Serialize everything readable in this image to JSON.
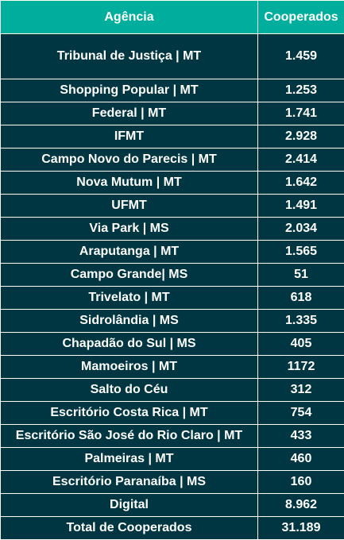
{
  "colors": {
    "header_bg": "#00ae9d",
    "row_bg": "#003641",
    "text": "#ffffff",
    "border": "#ffffff"
  },
  "table": {
    "headers": [
      "Agência",
      "Cooperados"
    ],
    "rows": [
      [
        "Tribunal de Justiça | MT",
        "1.459"
      ],
      [
        "Shopping Popular | MT",
        "1.253"
      ],
      [
        "Federal | MT",
        "1.741"
      ],
      [
        "IFMT",
        "2.928"
      ],
      [
        "Campo Novo do Parecis | MT",
        "2.414"
      ],
      [
        "Nova Mutum | MT",
        "1.642"
      ],
      [
        "UFMT",
        "1.491"
      ],
      [
        "Via Park | MS",
        "2.034"
      ],
      [
        "Araputanga | MT",
        "1.565"
      ],
      [
        "Campo Grande| MS",
        "51"
      ],
      [
        "Trivelato | MT",
        "618"
      ],
      [
        "Sidrolândia | MS",
        "1.335"
      ],
      [
        "Chapadão do Sul | MS",
        "405"
      ],
      [
        "Mamoeiros | MT",
        "1172"
      ],
      [
        "Salto do Céu",
        "312"
      ],
      [
        "Escritório Costa Rica | MT",
        "754"
      ],
      [
        "Escritório São José do Rio Claro | MT",
        "433"
      ],
      [
        "Palmeiras | MT",
        "460"
      ],
      [
        "Escritório Paranaíba | MS",
        "160"
      ],
      [
        "Digital",
        "8.962"
      ],
      [
        "Total de Cooperados",
        "31.189"
      ]
    ]
  }
}
